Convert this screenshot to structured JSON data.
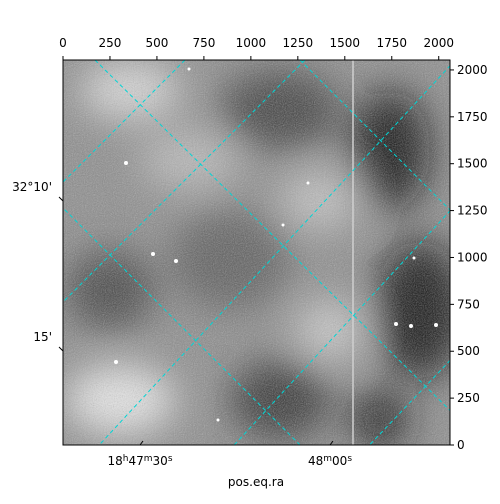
{
  "chart_data": {
    "type": "image",
    "xlabel": "pos.eq.ra",
    "xlim": [
      0,
      2060
    ],
    "ylim": [
      0,
      2053
    ],
    "xticks": [
      0,
      250,
      500,
      750,
      1000,
      1250,
      1500,
      1750,
      2000
    ],
    "yticks": [
      0,
      250,
      500,
      750,
      1000,
      1250,
      1500,
      1750,
      2000
    ],
    "world_x_labels": [
      "18h47m30s",
      "48m00s"
    ],
    "world_y_labels": [
      "32°10'",
      "15'"
    ],
    "grid_color": "#00d5d5"
  }
}
